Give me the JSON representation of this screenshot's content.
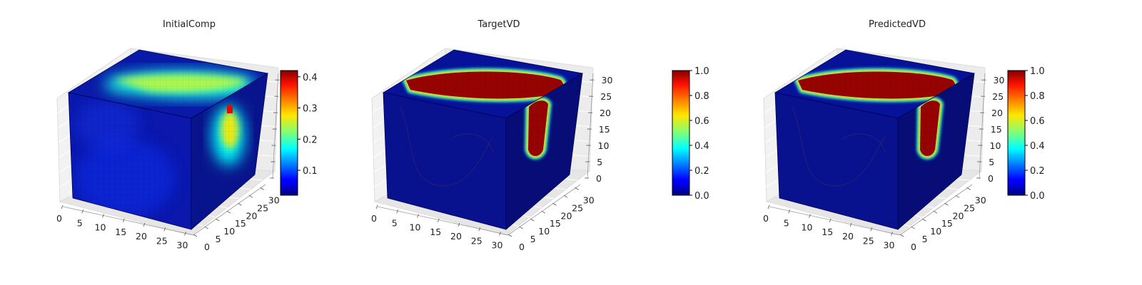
{
  "chart_data": [
    {
      "type": "heatmap",
      "title": "InitialComp",
      "x_ticks": [
        "0",
        "5",
        "10",
        "15",
        "20",
        "25",
        "30"
      ],
      "y_ticks": [
        "0",
        "5",
        "10",
        "15",
        "20",
        "25",
        "30"
      ],
      "z_ticks": [],
      "xlim": [
        0,
        32
      ],
      "ylim": [
        0,
        32
      ],
      "zlim": [
        0,
        32
      ],
      "colorbar": {
        "ticks": [
          "0.1",
          "0.2",
          "0.3",
          "0.4"
        ],
        "tick_values": [
          0.1,
          0.2,
          0.3,
          0.4
        ],
        "range": [
          0.02,
          0.42
        ]
      },
      "colormap": "jet",
      "field": "smooth",
      "hotspot_value": 0.42
    },
    {
      "type": "heatmap",
      "title": "TargetVD",
      "x_ticks": [
        "0",
        "5",
        "10",
        "15",
        "20",
        "25",
        "30"
      ],
      "y_ticks": [
        "0",
        "5",
        "10",
        "15",
        "20",
        "25",
        "30"
      ],
      "z_ticks": [
        "0",
        "5",
        "10",
        "15",
        "20",
        "25",
        "30"
      ],
      "xlim": [
        0,
        32
      ],
      "ylim": [
        0,
        32
      ],
      "zlim": [
        0,
        32
      ],
      "colorbar": {
        "ticks": [
          "0.0",
          "0.2",
          "0.4",
          "0.6",
          "0.8",
          "1.0"
        ],
        "tick_values": [
          0.0,
          0.2,
          0.4,
          0.6,
          0.8,
          1.0
        ],
        "range": [
          0.0,
          1.0
        ]
      },
      "colormap": "jet",
      "field": "sharp"
    },
    {
      "type": "heatmap",
      "title": "PredictedVD",
      "x_ticks": [
        "0",
        "5",
        "10",
        "15",
        "20",
        "25",
        "30"
      ],
      "y_ticks": [
        "0",
        "5",
        "10",
        "15",
        "20",
        "25",
        "30"
      ],
      "z_ticks": [
        "0",
        "5",
        "10",
        "15",
        "20",
        "25",
        "30"
      ],
      "xlim": [
        0,
        32
      ],
      "ylim": [
        0,
        32
      ],
      "zlim": [
        0,
        32
      ],
      "colorbar": {
        "ticks": [
          "0.0",
          "0.2",
          "0.4",
          "0.6",
          "0.8",
          "1.0"
        ],
        "tick_values": [
          0.0,
          0.2,
          0.4,
          0.6,
          0.8,
          1.0
        ],
        "range": [
          0.0,
          1.0
        ]
      },
      "colormap": "jet",
      "field": "sharp"
    }
  ]
}
